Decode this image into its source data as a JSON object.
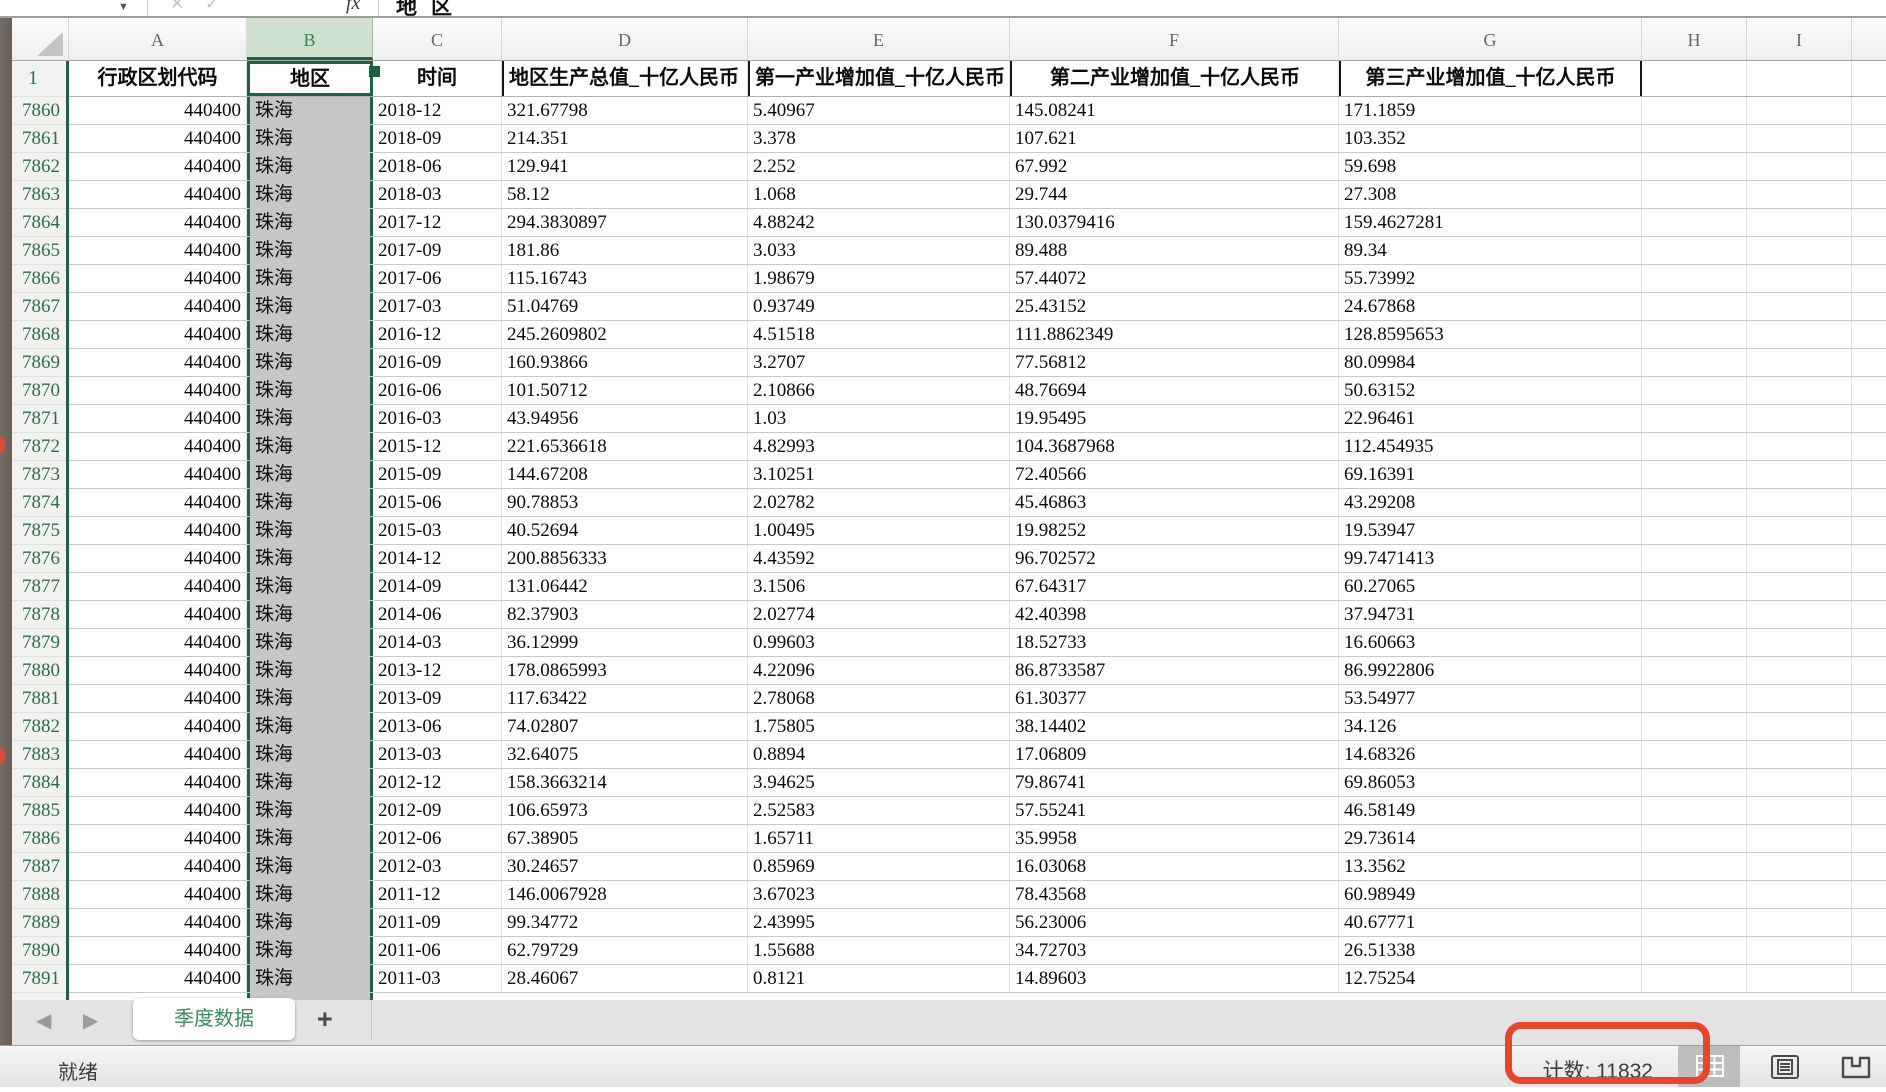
{
  "formula_bar": {
    "fx_label": "fx",
    "value": "地区",
    "cancel_glyph": "✕",
    "accept_glyph": "✓",
    "caret_glyph": "▼"
  },
  "sheet": {
    "selected_column": "B",
    "active_cell_value": "地区",
    "column_letters": [
      "A",
      "B",
      "C",
      "D",
      "E",
      "F",
      "G",
      "H",
      "I"
    ],
    "header_row": {
      "number": "1",
      "cells": [
        "行政区划代码",
        "地区",
        "时间",
        "地区生产总值_十亿人民币",
        "第一产业增加值_十亿人民币",
        "第二产业增加值_十亿人民币",
        "第三产业增加值_十亿人民币",
        "",
        ""
      ]
    },
    "rows": [
      {
        "n": "7860",
        "cells": [
          "440400",
          "珠海",
          "2018-12",
          "321.67798",
          "5.40967",
          "145.08241",
          "171.1859",
          "",
          ""
        ]
      },
      {
        "n": "7861",
        "cells": [
          "440400",
          "珠海",
          "2018-09",
          "214.351",
          "3.378",
          "107.621",
          "103.352",
          "",
          ""
        ]
      },
      {
        "n": "7862",
        "cells": [
          "440400",
          "珠海",
          "2018-06",
          "129.941",
          "2.252",
          "67.992",
          "59.698",
          "",
          ""
        ]
      },
      {
        "n": "7863",
        "cells": [
          "440400",
          "珠海",
          "2018-03",
          "58.12",
          "1.068",
          "29.744",
          "27.308",
          "",
          ""
        ]
      },
      {
        "n": "7864",
        "cells": [
          "440400",
          "珠海",
          "2017-12",
          "294.3830897",
          "4.88242",
          "130.0379416",
          "159.4627281",
          "",
          ""
        ]
      },
      {
        "n": "7865",
        "cells": [
          "440400",
          "珠海",
          "2017-09",
          "181.86",
          "3.033",
          "89.488",
          "89.34",
          "",
          ""
        ]
      },
      {
        "n": "7866",
        "cells": [
          "440400",
          "珠海",
          "2017-06",
          "115.16743",
          "1.98679",
          "57.44072",
          "55.73992",
          "",
          ""
        ]
      },
      {
        "n": "7867",
        "cells": [
          "440400",
          "珠海",
          "2017-03",
          "51.04769",
          "0.93749",
          "25.43152",
          "24.67868",
          "",
          ""
        ]
      },
      {
        "n": "7868",
        "cells": [
          "440400",
          "珠海",
          "2016-12",
          "245.2609802",
          "4.51518",
          "111.8862349",
          "128.8595653",
          "",
          ""
        ]
      },
      {
        "n": "7869",
        "cells": [
          "440400",
          "珠海",
          "2016-09",
          "160.93866",
          "3.2707",
          "77.56812",
          "80.09984",
          "",
          ""
        ]
      },
      {
        "n": "7870",
        "cells": [
          "440400",
          "珠海",
          "2016-06",
          "101.50712",
          "2.10866",
          "48.76694",
          "50.63152",
          "",
          ""
        ]
      },
      {
        "n": "7871",
        "cells": [
          "440400",
          "珠海",
          "2016-03",
          "43.94956",
          "1.03",
          "19.95495",
          "22.96461",
          "",
          ""
        ]
      },
      {
        "n": "7872",
        "cells": [
          "440400",
          "珠海",
          "2015-12",
          "221.6536618",
          "4.82993",
          "104.3687968",
          "112.454935",
          "",
          ""
        ]
      },
      {
        "n": "7873",
        "cells": [
          "440400",
          "珠海",
          "2015-09",
          "144.67208",
          "3.10251",
          "72.40566",
          "69.16391",
          "",
          ""
        ]
      },
      {
        "n": "7874",
        "cells": [
          "440400",
          "珠海",
          "2015-06",
          "90.78853",
          "2.02782",
          "45.46863",
          "43.29208",
          "",
          ""
        ]
      },
      {
        "n": "7875",
        "cells": [
          "440400",
          "珠海",
          "2015-03",
          "40.52694",
          "1.00495",
          "19.98252",
          "19.53947",
          "",
          ""
        ]
      },
      {
        "n": "7876",
        "cells": [
          "440400",
          "珠海",
          "2014-12",
          "200.8856333",
          "4.43592",
          "96.702572",
          "99.7471413",
          "",
          ""
        ]
      },
      {
        "n": "7877",
        "cells": [
          "440400",
          "珠海",
          "2014-09",
          "131.06442",
          "3.1506",
          "67.64317",
          "60.27065",
          "",
          ""
        ]
      },
      {
        "n": "7878",
        "cells": [
          "440400",
          "珠海",
          "2014-06",
          "82.37903",
          "2.02774",
          "42.40398",
          "37.94731",
          "",
          ""
        ]
      },
      {
        "n": "7879",
        "cells": [
          "440400",
          "珠海",
          "2014-03",
          "36.12999",
          "0.99603",
          "18.52733",
          "16.60663",
          "",
          ""
        ]
      },
      {
        "n": "7880",
        "cells": [
          "440400",
          "珠海",
          "2013-12",
          "178.0865993",
          "4.22096",
          "86.8733587",
          "86.9922806",
          "",
          ""
        ]
      },
      {
        "n": "7881",
        "cells": [
          "440400",
          "珠海",
          "2013-09",
          "117.63422",
          "2.78068",
          "61.30377",
          "53.54977",
          "",
          ""
        ]
      },
      {
        "n": "7882",
        "cells": [
          "440400",
          "珠海",
          "2013-06",
          "74.02807",
          "1.75805",
          "38.14402",
          "34.126",
          "",
          ""
        ]
      },
      {
        "n": "7883",
        "cells": [
          "440400",
          "珠海",
          "2013-03",
          "32.64075",
          "0.8894",
          "17.06809",
          "14.68326",
          "",
          ""
        ]
      },
      {
        "n": "7884",
        "cells": [
          "440400",
          "珠海",
          "2012-12",
          "158.3663214",
          "3.94625",
          "79.86741",
          "69.86053",
          "",
          ""
        ]
      },
      {
        "n": "7885",
        "cells": [
          "440400",
          "珠海",
          "2012-09",
          "106.65973",
          "2.52583",
          "57.55241",
          "46.58149",
          "",
          ""
        ]
      },
      {
        "n": "7886",
        "cells": [
          "440400",
          "珠海",
          "2012-06",
          "67.38905",
          "1.65711",
          "35.9958",
          "29.73614",
          "",
          ""
        ]
      },
      {
        "n": "7887",
        "cells": [
          "440400",
          "珠海",
          "2012-03",
          "30.24657",
          "0.85969",
          "16.03068",
          "13.3562",
          "",
          ""
        ]
      },
      {
        "n": "7888",
        "cells": [
          "440400",
          "珠海",
          "2011-12",
          "146.0067928",
          "3.67023",
          "78.43568",
          "60.98949",
          "",
          ""
        ]
      },
      {
        "n": "7889",
        "cells": [
          "440400",
          "珠海",
          "2011-09",
          "99.34772",
          "2.43995",
          "56.23006",
          "40.67771",
          "",
          ""
        ]
      },
      {
        "n": "7890",
        "cells": [
          "440400",
          "珠海",
          "2011-06",
          "62.79729",
          "1.55688",
          "34.72703",
          "26.51338",
          "",
          ""
        ]
      },
      {
        "n": "7891",
        "cells": [
          "440400",
          "珠海",
          "2011-03",
          "28.46067",
          "0.8121",
          "14.89603",
          "12.75254",
          "",
          ""
        ]
      }
    ]
  },
  "tabs": {
    "sheet_tab": "季度数据",
    "add_label": "+",
    "prev_glyph": "◀",
    "next_glyph": "▶"
  },
  "status_bar": {
    "ready": "就绪",
    "count": "计数: 11832"
  },
  "colors": {
    "accent_green": "#1f6145",
    "selected_header_fill": "#cfe0cf",
    "selected_column_fill": "#c6c6c6",
    "annotation_red": "#e5462e"
  }
}
